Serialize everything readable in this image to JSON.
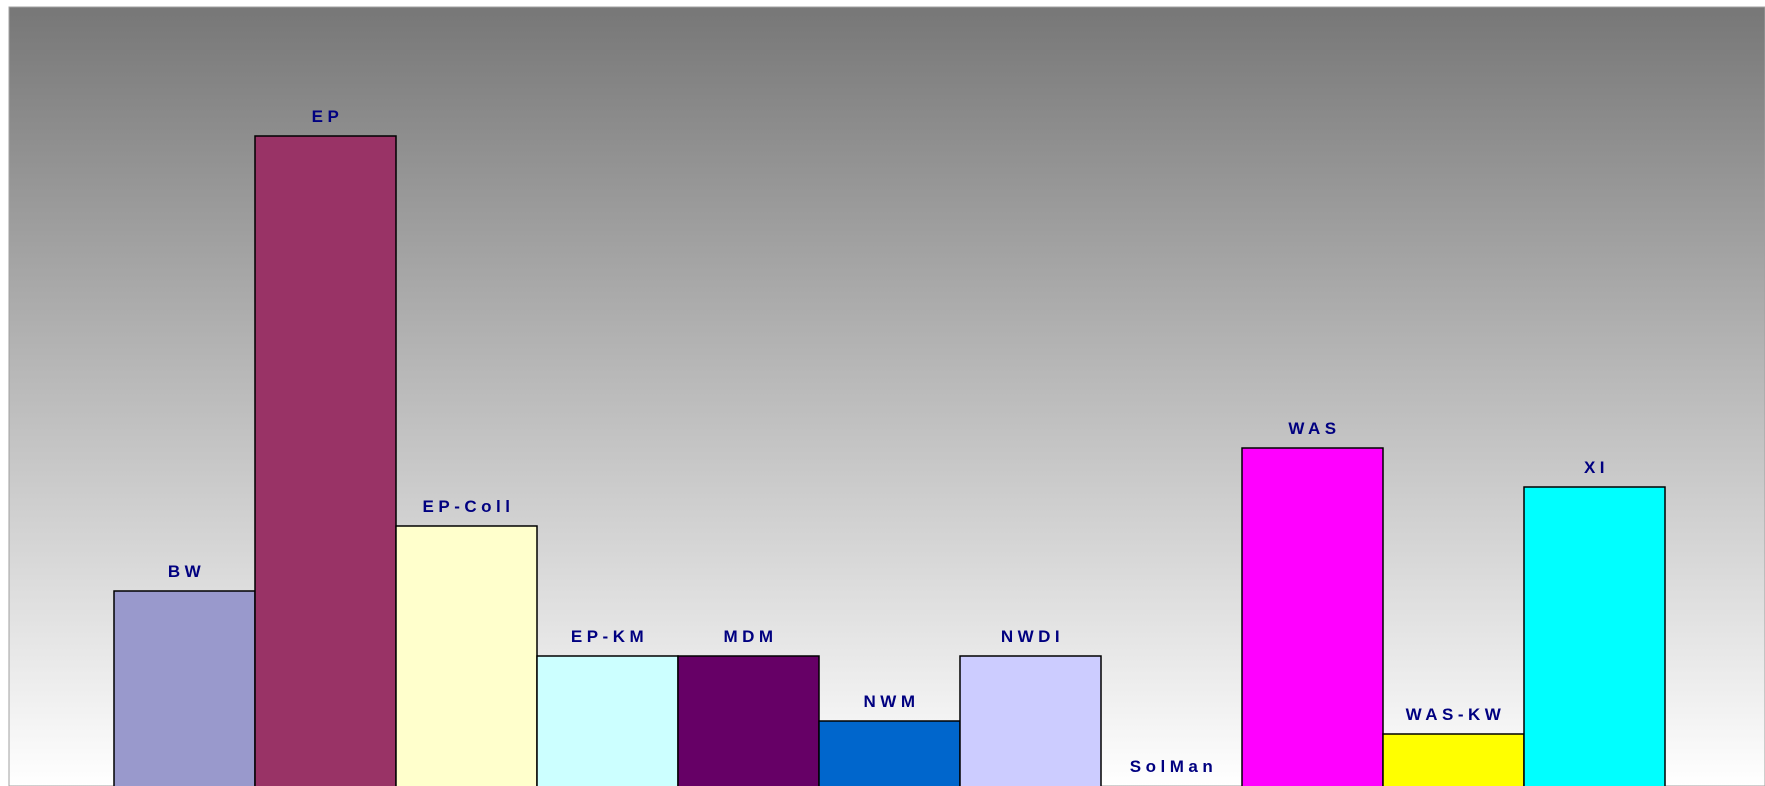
{
  "chart_data": {
    "type": "bar",
    "categories": [
      "BW",
      "EP",
      "EP-Coll",
      "EP-KM",
      "MDM",
      "NWM",
      "NWDI",
      "SolMan",
      "WAS",
      "WAS-KW",
      "XI"
    ],
    "values": [
      3,
      10,
      4,
      2,
      2,
      1,
      2,
      0,
      5.2,
      0.8,
      4.6
    ],
    "colors": [
      "#9999cc",
      "#993366",
      "#ffffcc",
      "#ccffff",
      "#660066",
      "#0066cc",
      "#ccccff",
      "#000080",
      "#ff00ff",
      "#ffff00",
      "#00ffff"
    ],
    "label_color": "#000080",
    "ylim": [
      0,
      10.5
    ],
    "grid": false,
    "legend": "none",
    "background": "vertical gradient from dark gray (top) to white (bottom)"
  }
}
